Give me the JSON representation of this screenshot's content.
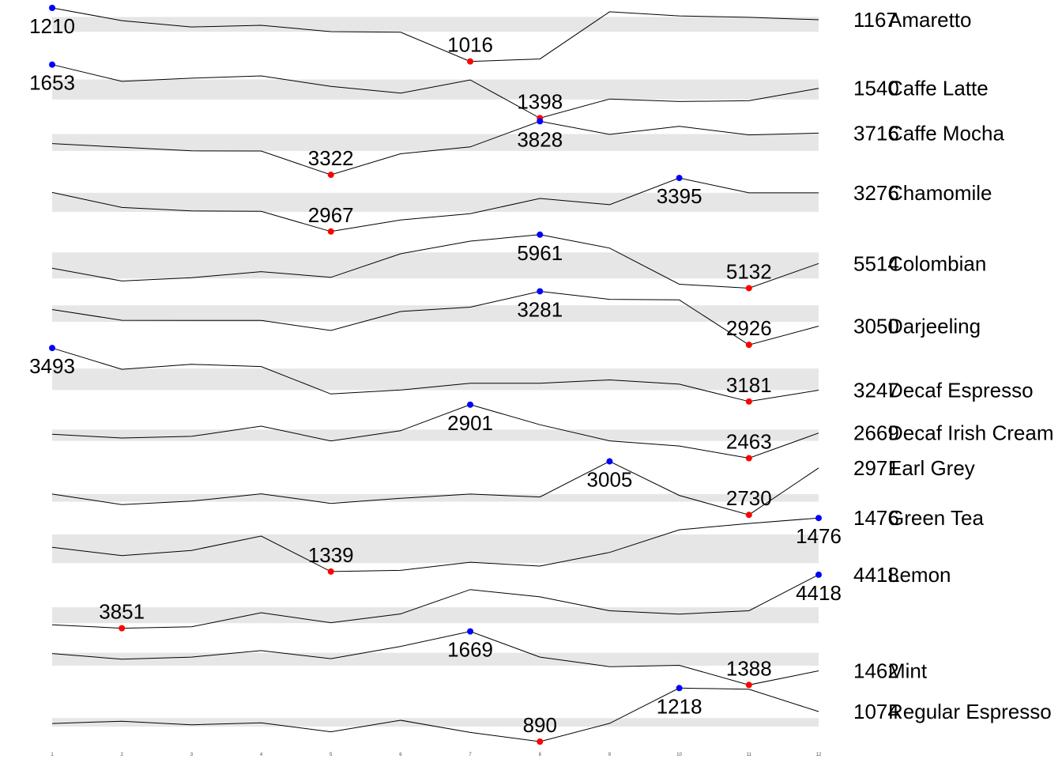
{
  "chart_data": {
    "type": "line",
    "title": "",
    "xlabel": "",
    "ylabel": "",
    "grid": false,
    "legend": "none",
    "x": [
      1,
      2,
      3,
      4,
      5,
      6,
      7,
      8,
      9,
      10,
      11,
      12
    ],
    "x_tick_labels": [
      "1",
      "2",
      "3",
      "4",
      "5",
      "6",
      "7",
      "8",
      "9",
      "10",
      "11",
      "12"
    ],
    "colors": {
      "line": "#000000",
      "band": "#e6e6e6",
      "max_point": "#0000ff",
      "min_point": "#ff0000"
    },
    "series": [
      {
        "name": "Amaretto",
        "last_label": "1167",
        "values": [
          1210,
          1164,
          1141,
          1147,
          1124,
          1122,
          1016,
          1025,
          1196,
          1181,
          1176,
          1167
        ],
        "max_label": "1210",
        "min_label": "1016"
      },
      {
        "name": "Caffe Latte",
        "last_label": "1540",
        "values": [
          1653,
          1573,
          1588,
          1599,
          1549,
          1517,
          1580,
          1398,
          1489,
          1477,
          1481,
          1540
        ],
        "max_label": "1653",
        "min_label": "1398"
      },
      {
        "name": "Caffe Mocha",
        "last_label": "3716",
        "values": [
          3617,
          3582,
          3548,
          3547,
          3322,
          3521,
          3586,
          3828,
          3704,
          3781,
          3699,
          3716
        ],
        "max_label": "3828",
        "min_label": "3322"
      },
      {
        "name": "Chamomile",
        "last_label": "3276",
        "values": [
          3279,
          3159,
          3131,
          3128,
          2967,
          3059,
          3109,
          3231,
          3181,
          3395,
          3276,
          3276
        ],
        "max_label": "3395",
        "min_label": "2967"
      },
      {
        "name": "Colombian",
        "last_label": "5514",
        "values": [
          5440,
          5243,
          5294,
          5388,
          5299,
          5664,
          5860,
          5961,
          5753,
          5193,
          5132,
          5514
        ],
        "max_label": "5961",
        "min_label": "5132"
      },
      {
        "name": "Darjeeling",
        "last_label": "3050",
        "values": [
          3160,
          3089,
          3088,
          3088,
          3021,
          3147,
          3176,
          3281,
          3228,
          3224,
          2926,
          3050
        ],
        "max_label": "3281",
        "min_label": "2926"
      },
      {
        "name": "Decaf Espresso",
        "last_label": "3247",
        "values": [
          3493,
          3369,
          3398,
          3385,
          3225,
          3248,
          3287,
          3287,
          3307,
          3282,
          3181,
          3247
        ],
        "max_label": "3493",
        "min_label": "3181"
      },
      {
        "name": "Decaf Irish Cream",
        "last_label": "2669",
        "values": [
          2659,
          2628,
          2642,
          2725,
          2604,
          2688,
          2901,
          2737,
          2605,
          2563,
          2463,
          2669
        ],
        "max_label": "2901",
        "min_label": "2463"
      },
      {
        "name": "Earl Grey",
        "last_label": "2971",
        "values": [
          2837,
          2783,
          2801,
          2838,
          2789,
          2815,
          2837,
          2822,
          3005,
          2830,
          2730,
          2971
        ],
        "max_label": "3005",
        "min_label": "2730"
      },
      {
        "name": "Green Tea",
        "last_label": "1476",
        "values": [
          1401,
          1380,
          1393,
          1430,
          1339,
          1342,
          1363,
          1353,
          1388,
          1446,
          1462,
          1476
        ],
        "max_label": "1476",
        "min_label": "1339"
      },
      {
        "name": "Lemon",
        "last_label": "4418",
        "values": [
          3888,
          3851,
          3866,
          4015,
          3910,
          4003,
          4261,
          4184,
          4036,
          4001,
          4036,
          4418
        ],
        "max_label": "4418",
        "min_label": "3851"
      },
      {
        "name": "Mint",
        "last_label": "1462",
        "values": [
          1553,
          1523,
          1534,
          1568,
          1526,
          1590,
          1669,
          1534,
          1484,
          1491,
          1388,
          1462
        ],
        "max_label": "1669",
        "min_label": "1388"
      },
      {
        "name": "Regular Espresso",
        "last_label": "1074",
        "values": [
          1001,
          1015,
          993,
          1005,
          950,
          1021,
          946,
          890,
          1002,
          1218,
          1211,
          1074
        ],
        "max_label": "1218",
        "min_label": "890"
      }
    ]
  }
}
